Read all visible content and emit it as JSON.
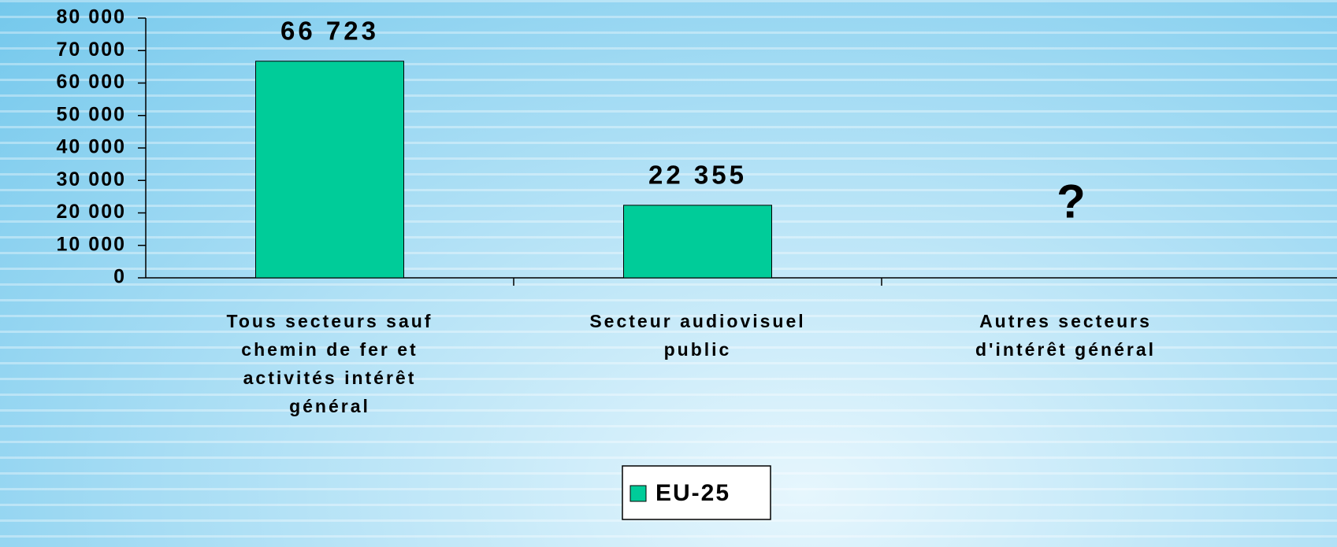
{
  "chart_data": {
    "type": "bar",
    "categories": [
      [
        "Tous secteurs sauf",
        "chemin de fer et",
        "activités intérêt",
        "général"
      ],
      [
        "Secteur audiovisuel",
        "public"
      ],
      [
        "Autres secteurs",
        "d'intérêt général"
      ]
    ],
    "series": [
      {
        "name": "EU-25",
        "color": "#00cc99",
        "values": [
          66723,
          22355,
          null
        ],
        "value_labels": [
          "66 723",
          "22 355",
          "?"
        ]
      }
    ],
    "ylim": [
      0,
      80000
    ],
    "yticks": [
      0,
      {
        "value": 10000,
        "label": "10 000"
      },
      {
        "value": 20000,
        "label": "20 000"
      },
      {
        "value": 30000,
        "label": "30 000"
      },
      {
        "value": 40000,
        "label": "40 000"
      },
      {
        "value": 50000,
        "label": "50 000"
      },
      {
        "value": 60000,
        "label": "60 000"
      },
      {
        "value": 70000,
        "label": "70 000"
      },
      {
        "value": 80000,
        "label": "80 000"
      }
    ],
    "grid": false,
    "legend": "bottom"
  }
}
